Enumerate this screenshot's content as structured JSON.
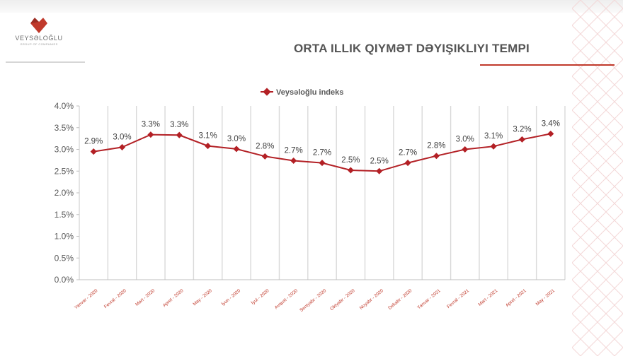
{
  "header": {
    "brand": "VEYSƏLOĞLU",
    "tagline": "GROUP OF COMPANIES",
    "title": "ORTA ILLIK QIYMƏT DƏYIŞIKLIYI TEMPI"
  },
  "colors": {
    "accent": "#c0392b",
    "line": "#b32025",
    "grid": "#d9d9d9",
    "text": "#595959"
  },
  "chart_data": {
    "type": "line",
    "title": "",
    "xlabel": "",
    "ylabel": "",
    "legend": "top",
    "grid": true,
    "ylim": [
      0,
      4.0
    ],
    "yticks": [
      "0.0%",
      "0.5%",
      "1.0%",
      "1.5%",
      "2.0%",
      "2.5%",
      "3.0%",
      "3.5%",
      "4.0%"
    ],
    "categories": [
      "Yanvar - 2020",
      "Fevral - 2020",
      "Mart - 2020",
      "Aprel - 2020",
      "May - 2020",
      "İyun - 2020",
      "İyul - 2020",
      "Avqust - 2020",
      "Sentyabr - 2020",
      "Oktyabr - 2020",
      "Noyabr - 2020",
      "Dekabr - 2020",
      "Yanvar - 2021",
      "Fevral - 2021",
      "Mart - 2021",
      "Aprel - 2021",
      "May - 2021"
    ],
    "series": [
      {
        "name": "Veysəloğlu indeks",
        "values": [
          2.95,
          3.05,
          3.34,
          3.33,
          3.08,
          3.01,
          2.84,
          2.74,
          2.69,
          2.52,
          2.5,
          2.69,
          2.85,
          3.0,
          3.07,
          3.23,
          3.36
        ],
        "labels": [
          "2.9%",
          "3.0%",
          "3.3%",
          "3.3%",
          "3.1%",
          "3.0%",
          "2.8%",
          "2.7%",
          "2.7%",
          "2.5%",
          "2.5%",
          "2.7%",
          "2.8%",
          "3.0%",
          "3.1%",
          "3.2%",
          "3.4%"
        ]
      }
    ]
  }
}
